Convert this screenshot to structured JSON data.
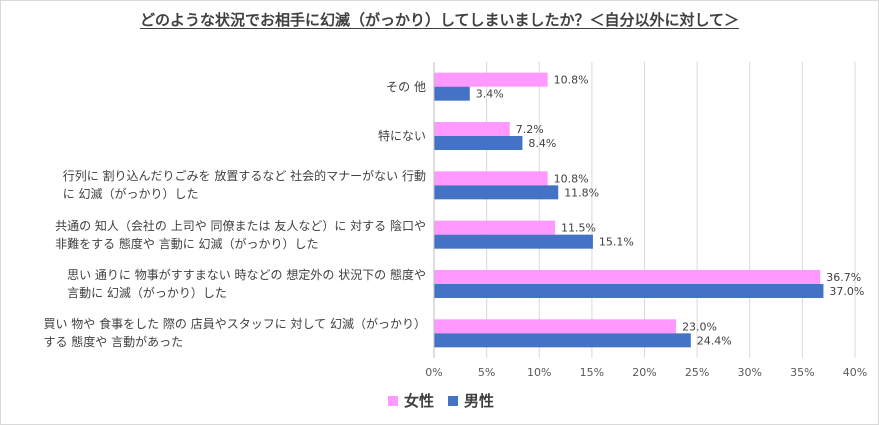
{
  "chart_data": {
    "type": "bar",
    "orientation": "horizontal",
    "title": "どのような状況でお相手に幻滅（がっかり）してしまいましたか？＜自分以外に対して＞",
    "categories": [
      {
        "lines": [
          "その 他"
        ]
      },
      {
        "lines": [
          "特にない"
        ]
      },
      {
        "lines": [
          "行列に 割り込んだりごみを 放置するなど 社会的マナーがない 行動",
          "に 幻滅（がっかり）した"
        ]
      },
      {
        "lines": [
          "共通の 知人（会社の 上司や 同僚または 友人など）に 対する 陰口や",
          "非難をする 態度や 言動に 幻滅（がっかり）した"
        ]
      },
      {
        "lines": [
          "思い 通りに 物事がすすまない 時などの 想定外の 状況下の 態度や",
          "言動に 幻滅（がっかり）した"
        ]
      },
      {
        "lines": [
          "買い 物や 食事をした 際の 店員やスタッフに 対して 幻滅（がっかり）",
          "する 態度や 言動があった"
        ]
      }
    ],
    "series": [
      {
        "name": "女性",
        "color": "#ff99ff",
        "values": [
          10.8,
          7.2,
          10.8,
          11.5,
          36.7,
          23.0
        ],
        "labels": [
          "10.8%",
          "7.2%",
          "10.8%",
          "11.5%",
          "36.7%",
          "23.0%"
        ]
      },
      {
        "name": "男性",
        "color": "#4472c4",
        "values": [
          3.4,
          8.4,
          11.8,
          15.1,
          37.0,
          24.4
        ],
        "labels": [
          "3.4%",
          "8.4%",
          "11.8%",
          "15.1%",
          "37.0%",
          "24.4%"
        ]
      }
    ],
    "xlim": [
      0,
      40
    ],
    "xticks": [
      0,
      5,
      10,
      15,
      20,
      25,
      30,
      35,
      40
    ],
    "xtick_labels": [
      "0%",
      "5%",
      "10%",
      "15%",
      "20%",
      "25%",
      "30%",
      "35%",
      "40%"
    ],
    "grid": true,
    "legend_position": "bottom"
  }
}
